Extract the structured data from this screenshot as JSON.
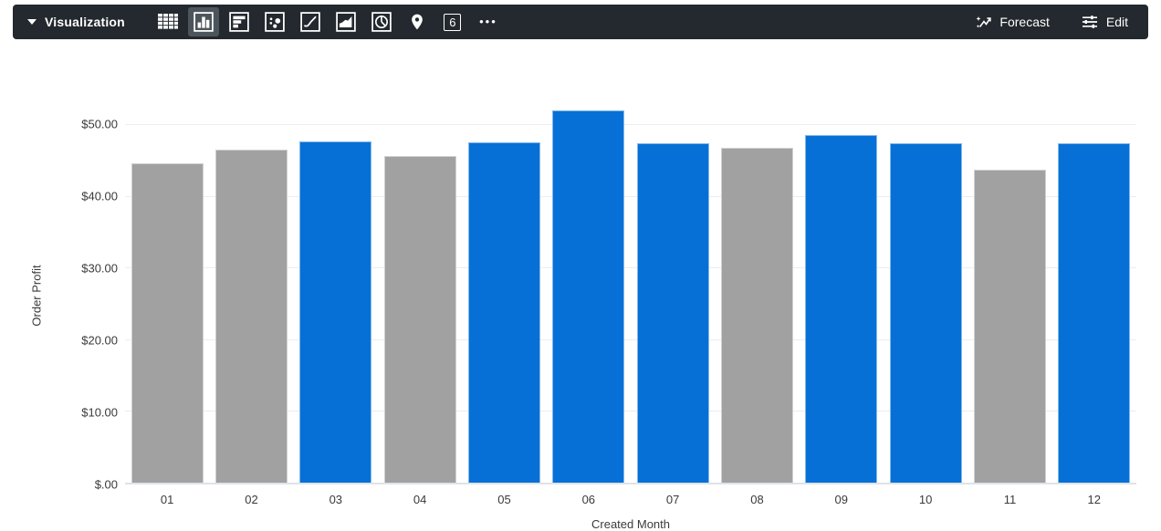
{
  "toolbar": {
    "title": "Visualization",
    "caret": "collapse-toggle",
    "viz_types": [
      {
        "name": "table",
        "selected": false
      },
      {
        "name": "column-chart",
        "selected": true
      },
      {
        "name": "bar-chart",
        "selected": false
      },
      {
        "name": "scatter-chart",
        "selected": false
      },
      {
        "name": "line-chart",
        "selected": false
      },
      {
        "name": "area-chart",
        "selected": false
      },
      {
        "name": "pie-chart",
        "selected": false
      },
      {
        "name": "map",
        "selected": false
      },
      {
        "name": "single-value",
        "selected": false
      },
      {
        "name": "more-options",
        "selected": false
      }
    ],
    "single_value_glyph": "6",
    "more_glyph": "•••",
    "forecast_label": "Forecast",
    "edit_label": "Edit"
  },
  "chart_data": {
    "type": "bar",
    "title": "",
    "xlabel": "Created Month",
    "ylabel": "Order Profit",
    "categories": [
      "01",
      "02",
      "03",
      "04",
      "05",
      "06",
      "07",
      "08",
      "09",
      "10",
      "11",
      "12"
    ],
    "values": [
      44.5,
      46.5,
      47.6,
      45.5,
      47.5,
      51.9,
      47.3,
      46.7,
      48.5,
      47.3,
      43.6,
      47.3
    ],
    "bar_colors": [
      "gray",
      "gray",
      "blue",
      "gray",
      "blue",
      "blue",
      "blue",
      "gray",
      "blue",
      "blue",
      "gray",
      "blue"
    ],
    "colors": {
      "blue": "#0770d6",
      "gray": "#a1a1a1"
    },
    "y_ticks": [
      {
        "value": 50,
        "label": "$50.00"
      },
      {
        "value": 40,
        "label": "$40.00"
      },
      {
        "value": 30,
        "label": "$30.00"
      },
      {
        "value": 20,
        "label": "$20.00"
      },
      {
        "value": 10,
        "label": "$10.00"
      },
      {
        "value": 0,
        "label": "$.00"
      }
    ],
    "ylim": [
      0,
      52.3
    ],
    "grid": true,
    "legend": "none"
  }
}
